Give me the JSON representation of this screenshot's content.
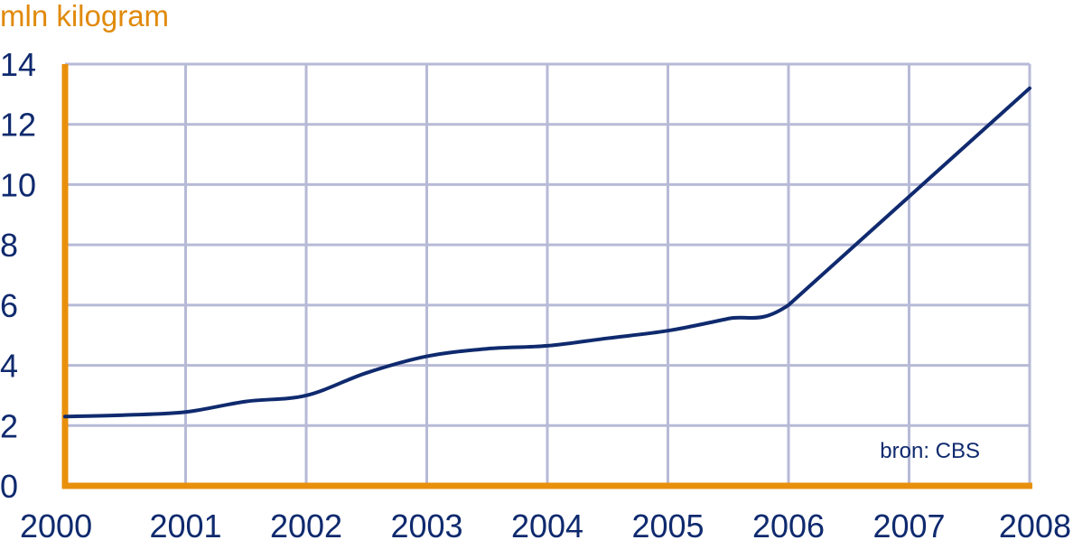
{
  "chart_data": {
    "type": "line",
    "ylabel": "mln kilogram",
    "source": "bron: CBS",
    "x_ticks": [
      "2000",
      "2001",
      "2002",
      "2003",
      "2004",
      "2005",
      "2006",
      "2007",
      "2008"
    ],
    "y_ticks": [
      "0",
      "2",
      "4",
      "6",
      "8",
      "10",
      "12",
      "14"
    ],
    "xlim": [
      2000,
      2008
    ],
    "ylim": [
      0,
      14
    ],
    "grid": true,
    "series": [
      {
        "x": [
          2000,
          2000.5,
          2001,
          2001.5,
          2002,
          2002.5,
          2003,
          2003.5,
          2004,
          2004.5,
          2005,
          2005.5,
          2006,
          2007,
          2008
        ],
        "y": [
          2.3,
          2.35,
          2.45,
          2.8,
          3.0,
          3.75,
          4.3,
          4.55,
          4.65,
          4.9,
          5.15,
          5.55,
          6.0,
          9.6,
          13.2
        ]
      }
    ],
    "colors": {
      "line": "#0f2a6e",
      "axis": "#e8900c",
      "grid": "#b7bad6",
      "text": "#0f2a6e",
      "unit": "#e08a0b"
    }
  }
}
